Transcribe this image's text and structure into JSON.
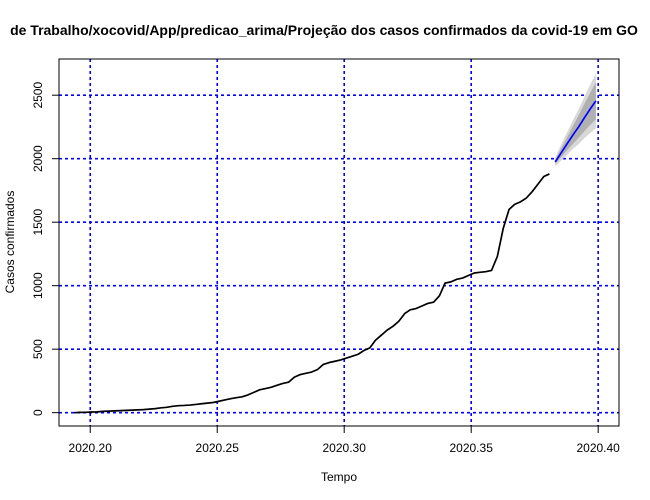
{
  "chart_data": {
    "type": "line",
    "title": "de Trabalho/xocovid/App/predicao_arima/Projeção dos casos confirmados da covid-19 em GO",
    "xlabel": "Tempo",
    "ylabel": "Casos confirmados",
    "xlim": [
      2020.1877,
      2020.4082
    ],
    "ylim": [
      -105,
      2785
    ],
    "xticks": [
      2020.2,
      2020.25,
      2020.3,
      2020.35,
      2020.4
    ],
    "xtick_labels": [
      "2020.20",
      "2020.25",
      "2020.30",
      "2020.35",
      "2020.40"
    ],
    "yticks": [
      0,
      500,
      1000,
      1500,
      2000,
      2500
    ],
    "ytick_labels": [
      "0",
      "500",
      "1000",
      "1500",
      "2000",
      "2500"
    ],
    "grid": true,
    "grid_color": "#0000ff",
    "observed": {
      "color": "#000000",
      "x": [
        2020.1936,
        2020.1959,
        2020.1982,
        2020.2005,
        2020.2027,
        2020.205,
        2020.2073,
        2020.2096,
        2020.2119,
        2020.2142,
        2020.2164,
        2020.2187,
        2020.221,
        2020.2233,
        2020.2256,
        2020.2279,
        2020.2301,
        2020.2324,
        2020.2347,
        2020.237,
        2020.2393,
        2020.2416,
        2020.2438,
        2020.2461,
        2020.2484,
        2020.2507,
        2020.253,
        2020.2553,
        2020.2575,
        2020.2598,
        2020.2621,
        2020.2644,
        2020.2667,
        2020.269,
        2020.2712,
        2020.2735,
        2020.2758,
        2020.2781,
        2020.2804,
        2020.2827,
        2020.2849,
        2020.2872,
        2020.2895,
        2020.2918,
        2020.2941,
        2020.2964,
        2020.2986,
        2020.3009,
        2020.3032,
        2020.3055,
        2020.3078,
        2020.3101,
        2020.3123,
        2020.3146,
        2020.3169,
        2020.3192,
        2020.3215,
        2020.3238,
        2020.326,
        2020.3283,
        2020.3306,
        2020.3329,
        2020.3352,
        2020.3375,
        2020.3397,
        2020.342,
        2020.3443,
        2020.3466,
        2020.3489,
        2020.3512,
        2020.3534,
        2020.3557,
        2020.358,
        2020.3603,
        2020.3626,
        2020.3649,
        2020.3671,
        2020.3694,
        2020.3717,
        2020.374,
        2020.3763,
        2020.3786,
        2020.3808
      ],
      "y": [
        0,
        2,
        3,
        5,
        6,
        10,
        12,
        14,
        16,
        18,
        20,
        22,
        24,
        28,
        32,
        38,
        42,
        50,
        55,
        57,
        60,
        65,
        70,
        75,
        80,
        90,
        100,
        110,
        118,
        125,
        140,
        160,
        180,
        190,
        200,
        215,
        230,
        240,
        280,
        300,
        310,
        320,
        340,
        380,
        395,
        405,
        415,
        430,
        445,
        460,
        490,
        510,
        570,
        610,
        650,
        680,
        720,
        780,
        810,
        820,
        840,
        860,
        870,
        920,
        1020,
        1030,
        1050,
        1060,
        1080,
        1100,
        1105,
        1110,
        1120,
        1230,
        1450,
        1600,
        1640,
        1660,
        1690,
        1740,
        1800,
        1860,
        1880
      ]
    },
    "forecast": {
      "color": "#0000ff",
      "x": [
        2020.3831,
        2020.3854,
        2020.3877,
        2020.39,
        2020.3923,
        2020.3945,
        2020.3968,
        2020.3991
      ],
      "y": [
        1975,
        2045,
        2115,
        2185,
        2250,
        2320,
        2390,
        2455
      ],
      "lo80": [
        1960,
        2010,
        2065,
        2115,
        2165,
        2215,
        2265,
        2310
      ],
      "hi80": [
        1990,
        2080,
        2165,
        2255,
        2340,
        2430,
        2515,
        2600
      ],
      "lo95": [
        1940,
        1985,
        2030,
        2075,
        2115,
        2160,
        2200,
        2240
      ],
      "hi95": [
        2010,
        2110,
        2205,
        2300,
        2390,
        2485,
        2580,
        2670
      ],
      "band80_color": "#b0b0b0",
      "band95_color": "#d8d8d8"
    }
  }
}
